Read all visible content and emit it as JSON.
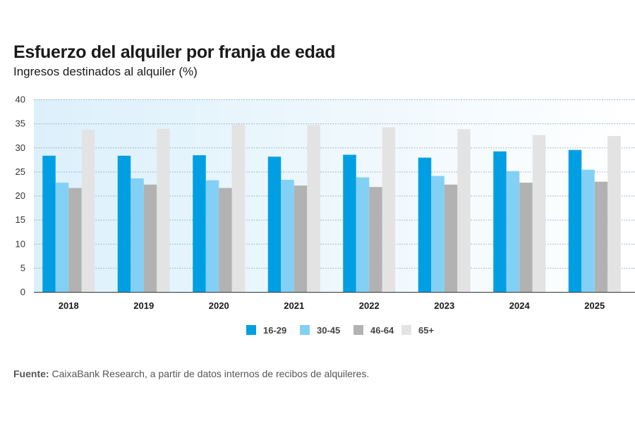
{
  "chart_data": {
    "type": "bar",
    "title": "Esfuerzo del alquiler por franja de edad",
    "subtitle": "Ingresos destinados al alquiler (%)",
    "xlabel": "",
    "ylabel": "",
    "ylim": [
      0,
      40
    ],
    "yticks": [
      0,
      5,
      10,
      15,
      20,
      25,
      30,
      35,
      40
    ],
    "grid": true,
    "legend_position": "bottom",
    "categories": [
      "2018",
      "2019",
      "2020",
      "2021",
      "2022",
      "2023",
      "2024",
      "2025"
    ],
    "series": [
      {
        "name": "16-29",
        "color": "#009fe3",
        "values": [
          28.3,
          28.3,
          28.4,
          28.1,
          28.5,
          27.9,
          29.2,
          29.5
        ]
      },
      {
        "name": "30-45",
        "color": "#83d0f5",
        "values": [
          22.7,
          23.6,
          23.2,
          23.3,
          23.8,
          24.1,
          25.1,
          25.4
        ]
      },
      {
        "name": "46-64",
        "color": "#b2b2b2",
        "values": [
          21.6,
          22.3,
          21.6,
          22.1,
          21.8,
          22.3,
          22.7,
          22.9
        ]
      },
      {
        "name": "65+",
        "color": "#e3e3e3",
        "values": [
          33.7,
          33.9,
          34.8,
          34.7,
          34.2,
          33.8,
          32.6,
          32.4
        ]
      }
    ]
  },
  "source": {
    "label": "Fuente:",
    "text": " CaixaBank Research, a partir de datos internos de recibos de alquileres."
  }
}
